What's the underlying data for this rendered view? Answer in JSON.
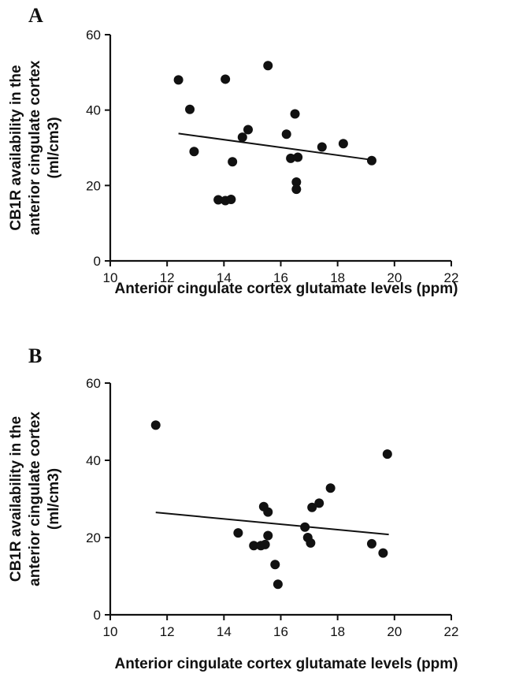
{
  "chart_data": [
    {
      "panel": "A",
      "type": "scatter",
      "xlabel": "Anterior cingulate cortex glutamate levels (ppm)",
      "ylabel": [
        "CB1R availability in the",
        "anterior cingulate cortex",
        "(ml/cm3)"
      ],
      "xlim": [
        10,
        22
      ],
      "ylim": [
        0,
        60
      ],
      "xticks": [
        10,
        12,
        14,
        16,
        18,
        20,
        22
      ],
      "yticks": [
        0,
        20,
        40,
        60
      ],
      "points": [
        {
          "x": 12.4,
          "y": 48.0
        },
        {
          "x": 12.8,
          "y": 40.2
        },
        {
          "x": 12.95,
          "y": 29.0
        },
        {
          "x": 13.8,
          "y": 16.2
        },
        {
          "x": 14.05,
          "y": 16.0
        },
        {
          "x": 14.05,
          "y": 48.2
        },
        {
          "x": 14.25,
          "y": 16.3
        },
        {
          "x": 14.3,
          "y": 26.3
        },
        {
          "x": 14.65,
          "y": 32.8
        },
        {
          "x": 14.85,
          "y": 34.8
        },
        {
          "x": 15.55,
          "y": 51.8
        },
        {
          "x": 16.2,
          "y": 33.6
        },
        {
          "x": 16.35,
          "y": 27.2
        },
        {
          "x": 16.5,
          "y": 39.0
        },
        {
          "x": 16.55,
          "y": 20.9
        },
        {
          "x": 16.55,
          "y": 19.0
        },
        {
          "x": 16.6,
          "y": 27.5
        },
        {
          "x": 17.45,
          "y": 30.2
        },
        {
          "x": 18.2,
          "y": 31.1
        },
        {
          "x": 19.2,
          "y": 26.6
        }
      ],
      "fit_line": {
        "x": [
          12.4,
          19.2
        ],
        "y": [
          33.8,
          26.8
        ]
      }
    },
    {
      "panel": "B",
      "type": "scatter",
      "xlabel": "Anterior cingulate cortex glutamate levels (ppm)",
      "ylabel": [
        "CB1R availability in the",
        "anterior cingulate cortex",
        "(ml/cm3)"
      ],
      "xlim": [
        10,
        22
      ],
      "ylim": [
        0,
        60
      ],
      "xticks": [
        10,
        12,
        14,
        16,
        18,
        20,
        22
      ],
      "yticks": [
        0,
        20,
        40,
        60
      ],
      "points": [
        {
          "x": 11.6,
          "y": 49.1
        },
        {
          "x": 14.5,
          "y": 21.2
        },
        {
          "x": 15.05,
          "y": 17.9
        },
        {
          "x": 15.3,
          "y": 17.9
        },
        {
          "x": 15.4,
          "y": 28.0
        },
        {
          "x": 15.45,
          "y": 18.2
        },
        {
          "x": 15.55,
          "y": 26.6
        },
        {
          "x": 15.55,
          "y": 20.5
        },
        {
          "x": 15.8,
          "y": 13.0
        },
        {
          "x": 15.9,
          "y": 7.9
        },
        {
          "x": 16.85,
          "y": 22.7
        },
        {
          "x": 16.95,
          "y": 20.0
        },
        {
          "x": 17.05,
          "y": 18.6
        },
        {
          "x": 17.1,
          "y": 27.8
        },
        {
          "x": 17.35,
          "y": 28.9
        },
        {
          "x": 17.75,
          "y": 32.8
        },
        {
          "x": 19.2,
          "y": 18.4
        },
        {
          "x": 19.6,
          "y": 16.0
        },
        {
          "x": 19.75,
          "y": 41.6
        }
      ],
      "fit_line": {
        "x": [
          11.6,
          19.8
        ],
        "y": [
          26.5,
          20.8
        ]
      }
    }
  ]
}
